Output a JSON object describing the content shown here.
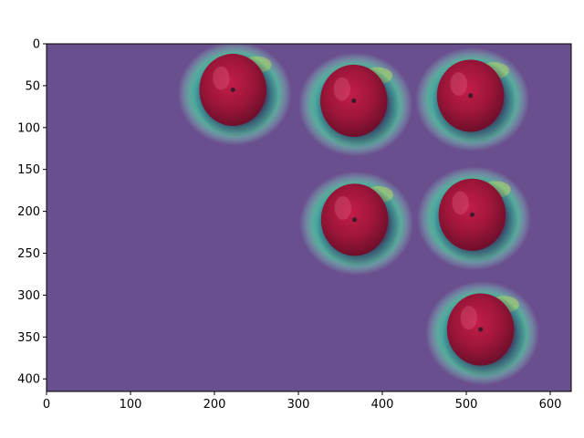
{
  "figure": {
    "image_description_layer": "apples heatmap overlay"
  },
  "axes": {
    "x_ticks": [
      "0",
      "100",
      "200",
      "300",
      "400",
      "500",
      "600"
    ],
    "y_ticks": [
      "0",
      "50",
      "100",
      "150",
      "200",
      "250",
      "300",
      "350",
      "400"
    ],
    "x_range": [
      0,
      625
    ],
    "y_range": [
      0,
      415
    ]
  },
  "apples": [
    {
      "cx": 222,
      "cy": 55
    },
    {
      "cx": 366,
      "cy": 68
    },
    {
      "cx": 505,
      "cy": 62
    },
    {
      "cx": 367,
      "cy": 210
    },
    {
      "cx": 507,
      "cy": 204
    },
    {
      "cx": 517,
      "cy": 341
    }
  ],
  "colors": {
    "background": "#6a4f8e",
    "apple_red": "#a0163a",
    "heat_teal": "#2fb0a6",
    "heat_yellow": "#c9e25c"
  }
}
